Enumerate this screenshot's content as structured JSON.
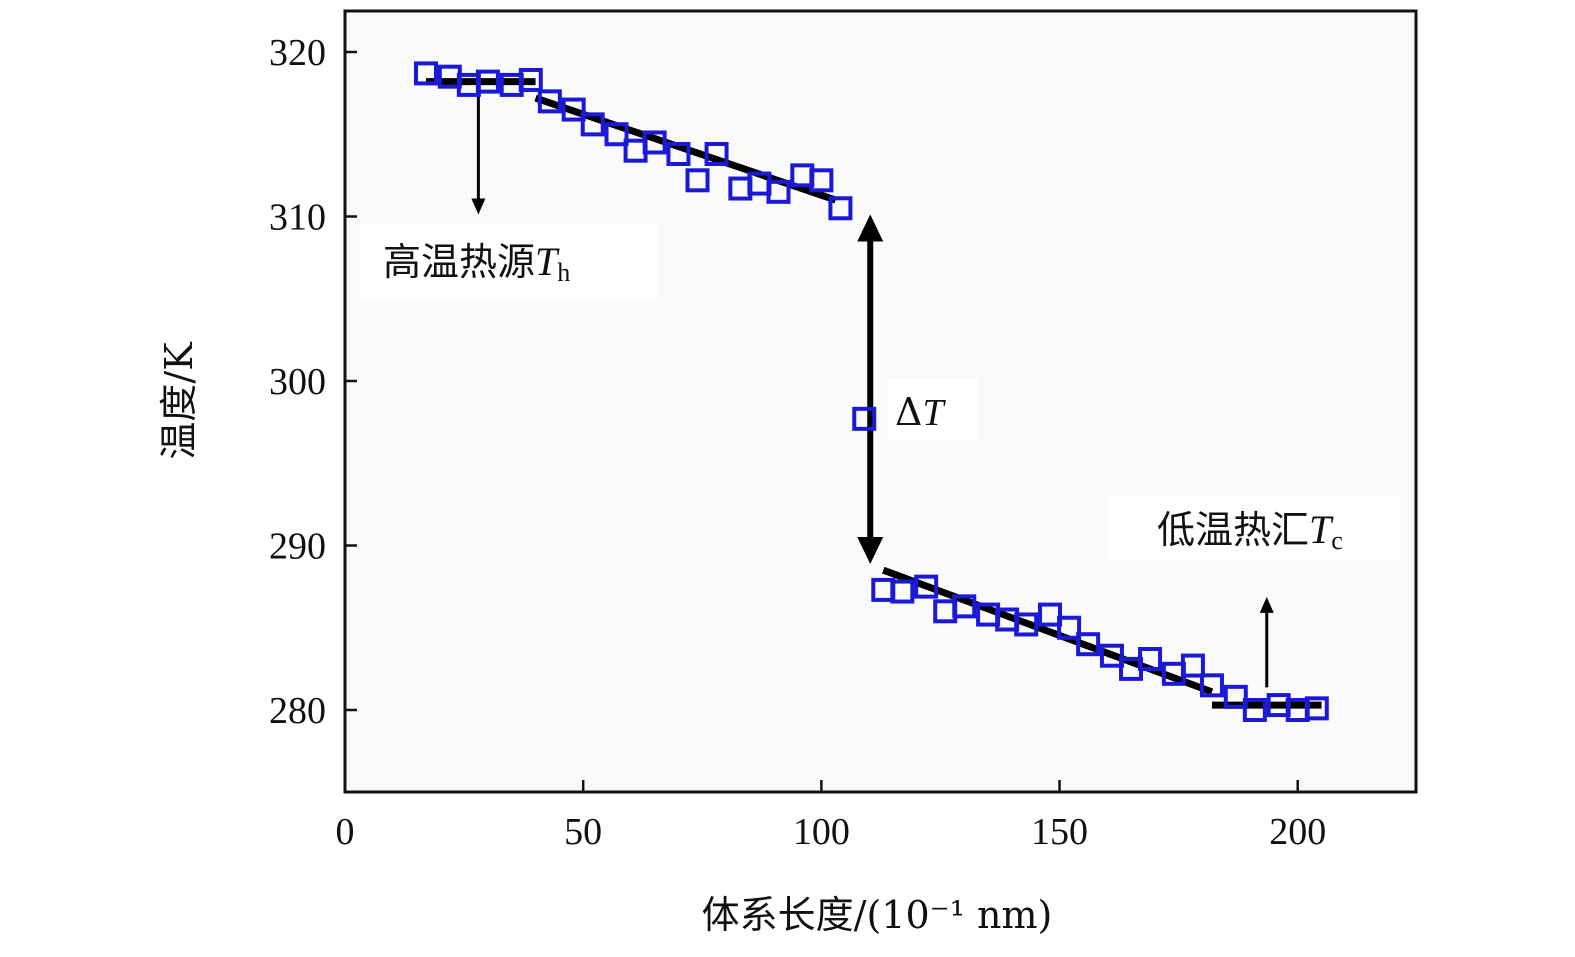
{
  "chart_data": {
    "type": "scatter",
    "xlabel": "体系长度/(10⁻¹ nm)",
    "ylabel": "温度/K",
    "xlim": [
      0,
      225
    ],
    "ylim": [
      275,
      322.5
    ],
    "xticks": [
      0,
      50,
      100,
      150,
      200
    ],
    "yticks": [
      280,
      290,
      300,
      310,
      320
    ],
    "series": [
      {
        "name": "temperature-profile",
        "marker": "open-square",
        "color": "#1a1ad6",
        "points": [
          {
            "x": 17,
            "y": 318.7
          },
          {
            "x": 22,
            "y": 318.5
          },
          {
            "x": 26,
            "y": 318.0
          },
          {
            "x": 30,
            "y": 318.2
          },
          {
            "x": 35,
            "y": 318.0
          },
          {
            "x": 39,
            "y": 318.3
          },
          {
            "x": 43,
            "y": 317.0
          },
          {
            "x": 48,
            "y": 316.5
          },
          {
            "x": 52,
            "y": 315.6
          },
          {
            "x": 57,
            "y": 315.0
          },
          {
            "x": 61,
            "y": 314.0
          },
          {
            "x": 65,
            "y": 314.5
          },
          {
            "x": 70,
            "y": 313.8
          },
          {
            "x": 74,
            "y": 312.2
          },
          {
            "x": 78,
            "y": 313.8
          },
          {
            "x": 83,
            "y": 311.7
          },
          {
            "x": 87,
            "y": 312.0
          },
          {
            "x": 91,
            "y": 311.5
          },
          {
            "x": 96,
            "y": 312.5
          },
          {
            "x": 100,
            "y": 312.2
          },
          {
            "x": 104,
            "y": 310.5
          },
          {
            "x": 109,
            "y": 297.7
          },
          {
            "x": 113,
            "y": 287.3
          },
          {
            "x": 117,
            "y": 287.2
          },
          {
            "x": 122,
            "y": 287.5
          },
          {
            "x": 126,
            "y": 286.0
          },
          {
            "x": 130,
            "y": 286.3
          },
          {
            "x": 135,
            "y": 285.8
          },
          {
            "x": 139,
            "y": 285.5
          },
          {
            "x": 143,
            "y": 285.2
          },
          {
            "x": 148,
            "y": 285.8
          },
          {
            "x": 152,
            "y": 285.0
          },
          {
            "x": 156,
            "y": 284.0
          },
          {
            "x": 161,
            "y": 283.3
          },
          {
            "x": 165,
            "y": 282.5
          },
          {
            "x": 169,
            "y": 283.1
          },
          {
            "x": 174,
            "y": 282.2
          },
          {
            "x": 178,
            "y": 282.7
          },
          {
            "x": 182,
            "y": 281.5
          },
          {
            "x": 187,
            "y": 280.8
          },
          {
            "x": 191,
            "y": 280.0
          },
          {
            "x": 196,
            "y": 280.3
          },
          {
            "x": 200,
            "y": 280.0
          },
          {
            "x": 204,
            "y": 280.1
          }
        ]
      }
    ],
    "fit_lines": [
      {
        "name": "hot-source-fit",
        "x": [
          17,
          40
        ],
        "y": [
          318.2,
          318.2
        ]
      },
      {
        "name": "hot-gradient-fit",
        "x": [
          40,
          103
        ],
        "y": [
          317.2,
          311.0
        ]
      },
      {
        "name": "cold-gradient-fit",
        "x": [
          113,
          182
        ],
        "y": [
          288.5,
          281.1
        ]
      },
      {
        "name": "cold-sink-fit",
        "x": [
          182,
          205
        ],
        "y": [
          280.3,
          280.3
        ]
      }
    ],
    "annotations": {
      "hot_source": {
        "prefix": "高温热源",
        "symbol": "T",
        "subscript": "h"
      },
      "cold_sink": {
        "prefix": "低温热汇",
        "symbol": "T",
        "subscript": "c"
      },
      "delta": {
        "prefix": "Δ",
        "symbol": "T"
      }
    },
    "arrow_targets": {
      "hot_arrow": {
        "x": 28,
        "y_from": 318.2,
        "y_to": 310.0
      },
      "cold_arrow": {
        "x": 193.5,
        "y_from": 281.5,
        "y_to": 287.0
      },
      "delta_arrow": {
        "x": 109,
        "y_from": 310.0,
        "y_to": 289.0
      }
    }
  }
}
